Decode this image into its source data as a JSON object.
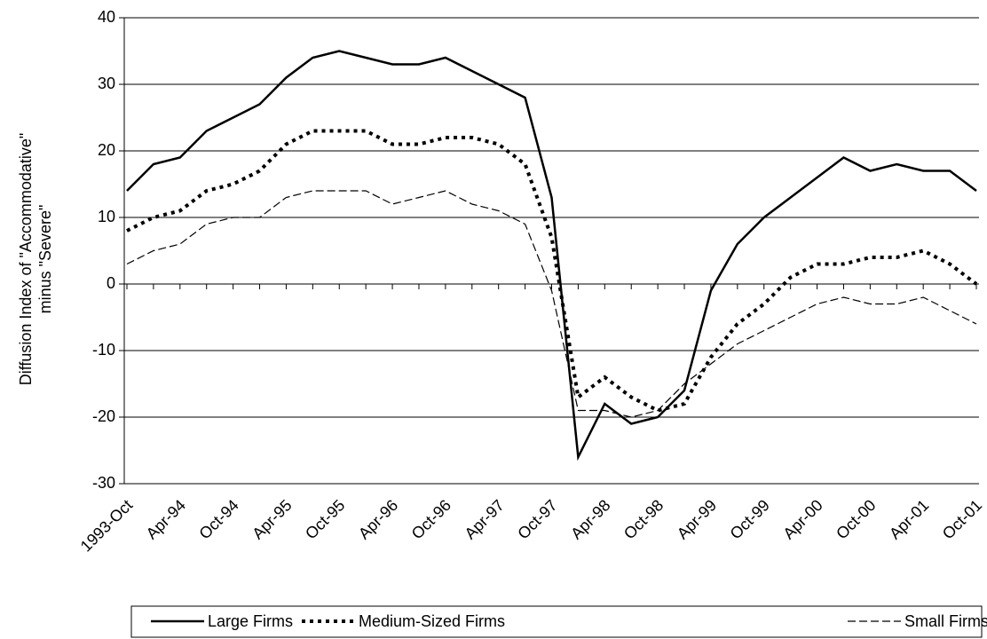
{
  "chart_data": {
    "type": "line",
    "ylabel": [
      "Diffusion Index of \"Accommodative\"",
      "minus \"Severe\""
    ],
    "categories": [
      "1993-Oct",
      null,
      "Apr-94",
      null,
      "Oct-94",
      null,
      "Apr-95",
      null,
      "Oct-95",
      null,
      "Apr-96",
      null,
      "Oct-96",
      null,
      "Apr-97",
      null,
      "Oct-97",
      null,
      "Apr-98",
      null,
      "Oct-98",
      null,
      "Apr-99",
      null,
      "Oct-99",
      null,
      "Apr-00",
      null,
      "Oct-00",
      null,
      "Apr-01",
      null,
      "Oct-01"
    ],
    "series": [
      {
        "name": "Large Firms",
        "color": "#000000",
        "style": "solid",
        "values": [
          14,
          18,
          19,
          23,
          25,
          27,
          31,
          34,
          35,
          34,
          33,
          33,
          34,
          32,
          30,
          28,
          13,
          -26,
          -18,
          -21,
          -20,
          -16,
          -1,
          6,
          10,
          13,
          16,
          19,
          17,
          18,
          17,
          17,
          14
        ]
      },
      {
        "name": "Medium-Sized Firms",
        "color": "#000000",
        "style": "dotted",
        "values": [
          8,
          10,
          11,
          14,
          15,
          17,
          21,
          23,
          23,
          23,
          21,
          21,
          22,
          22,
          21,
          18,
          7,
          -17,
          -14,
          -17,
          -19,
          -18,
          -11,
          -6,
          -3,
          1,
          3,
          3,
          4,
          4,
          5,
          3,
          0
        ]
      },
      {
        "name": "Small Firms",
        "color": "#000000",
        "style": "dashed",
        "values": [
          3,
          5,
          6,
          9,
          10,
          10,
          13,
          14,
          14,
          14,
          12,
          13,
          14,
          12,
          11,
          9,
          -1,
          -19,
          -19,
          -20,
          -19,
          -15,
          -12,
          -9,
          -7,
          -5,
          -3,
          -2,
          -3,
          -3,
          -2,
          -4,
          -6
        ]
      }
    ],
    "ylim": [
      -30,
      40
    ],
    "yticks": [
      -30,
      -20,
      -10,
      0,
      10,
      20,
      30,
      40
    ],
    "grid": true
  }
}
